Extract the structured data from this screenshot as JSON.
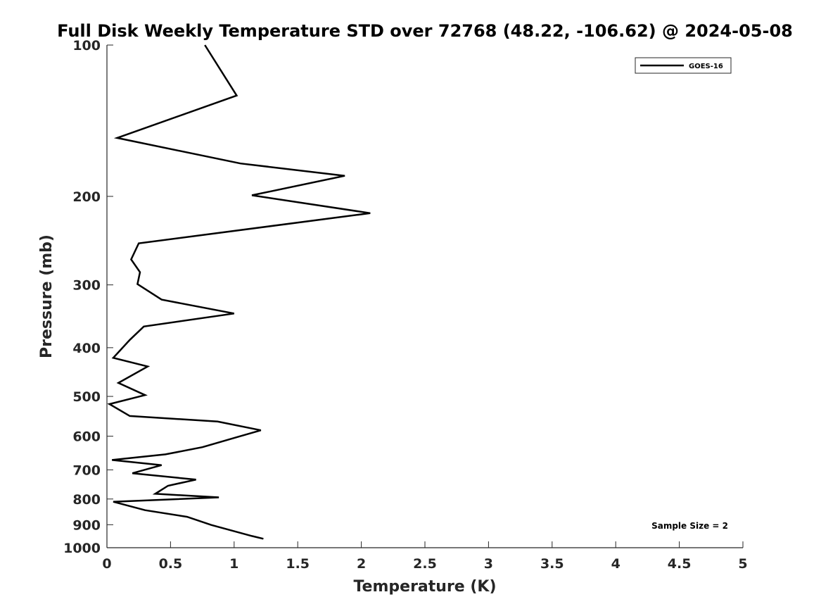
{
  "chart_data": {
    "type": "line",
    "title": "Full Disk Weekly Temperature STD over 72768 (48.22, -106.62) @ 2024-05-08",
    "xlabel": "Temperature (K)",
    "ylabel": "Pressure (mb)",
    "xlim": [
      0,
      5
    ],
    "ylim": [
      1000,
      100
    ],
    "yscale": "log",
    "y_reversed": true,
    "grid": false,
    "legend_position": "top-right",
    "x_ticks": [
      "0",
      "0.5",
      "1",
      "1.5",
      "2",
      "2.5",
      "3",
      "3.5",
      "4",
      "4.5",
      "5"
    ],
    "y_ticks": [
      "100",
      "200",
      "300",
      "400",
      "500",
      "600",
      "700",
      "800",
      "900",
      "1000"
    ],
    "series": [
      {
        "name": "GOES-16",
        "color": "#000000",
        "points": [
          [
            0.77,
            100
          ],
          [
            1.02,
            126
          ],
          [
            0.08,
            153
          ],
          [
            1.05,
            172
          ],
          [
            1.87,
            182
          ],
          [
            1.14,
            199
          ],
          [
            2.07,
            216
          ],
          [
            0.25,
            248
          ],
          [
            0.19,
            267
          ],
          [
            0.26,
            283
          ],
          [
            0.24,
            299
          ],
          [
            0.43,
            321
          ],
          [
            1.0,
            342
          ],
          [
            0.29,
            363
          ],
          [
            0.18,
            386
          ],
          [
            0.05,
            419
          ],
          [
            0.32,
            436
          ],
          [
            0.09,
            470
          ],
          [
            0.3,
            497
          ],
          [
            0.02,
            518
          ],
          [
            0.18,
            547
          ],
          [
            0.87,
            561
          ],
          [
            1.21,
            584
          ],
          [
            1.02,
            603
          ],
          [
            0.75,
            631
          ],
          [
            0.46,
            652
          ],
          [
            0.04,
            669
          ],
          [
            0.43,
            685
          ],
          [
            0.2,
            711
          ],
          [
            0.7,
            732
          ],
          [
            0.48,
            753
          ],
          [
            0.38,
            781
          ],
          [
            0.88,
            794
          ],
          [
            0.05,
            810
          ],
          [
            0.3,
            842
          ],
          [
            0.63,
            868
          ],
          [
            0.82,
            901
          ],
          [
            1.14,
            948
          ],
          [
            1.23,
            960
          ]
        ]
      }
    ],
    "annotations": [
      "Sample Size = 2"
    ]
  }
}
